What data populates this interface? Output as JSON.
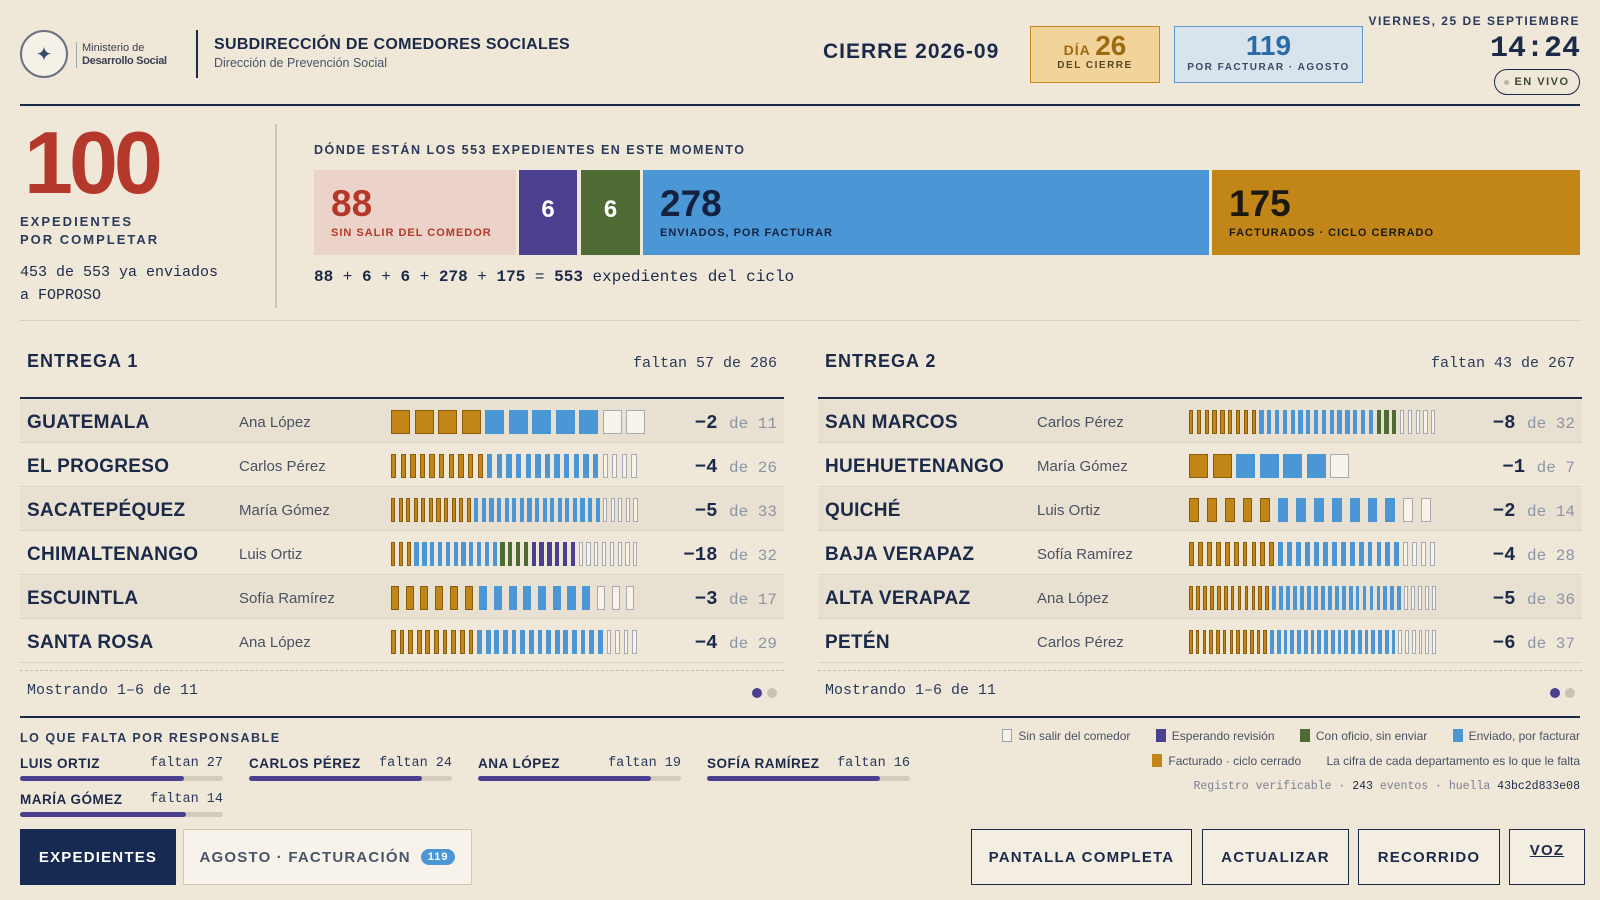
{
  "header": {
    "seal_text": "",
    "ministry_line1": "Ministerio de",
    "ministry_line2": "Desarrollo Social",
    "org_title": "SUBDIRECCIÓN DE COMEDORES SOCIALES",
    "org_subtitle": "Dirección de Prevención Social",
    "cierre": "CIERRE 2026-09",
    "dia_label": "DÍA",
    "dia_num": "26",
    "dia_sub": "DEL CIERRE",
    "fact_num": "119",
    "fact_sub": "POR FACTURAR · AGOSTO",
    "date": "VIERNES, 25 DE SEPTIEMBRE",
    "clock": "14:24",
    "live": "EN VIVO"
  },
  "hero": {
    "number": "100",
    "label1": "EXPEDIENTES",
    "label2": "POR COMPLETAR",
    "note1": "453 de 553 ya enviados",
    "note2": "a FOPROSO"
  },
  "pipeline": {
    "title": "DÓNDE ESTÁN LOS 553 EXPEDIENTES EN ESTE MOMENTO",
    "sin_num": "88",
    "sin_label": "SIN SALIR DEL COMEDOR",
    "esp_num": "6",
    "ofi_num": "6",
    "env_num": "278",
    "env_label": "ENVIADOS, POR FACTURAR",
    "fac_num": "175",
    "fac_label": "FACTURADOS · CICLO CERRADO",
    "eq": [
      "88",
      " + ",
      "6",
      " + ",
      "6",
      " + ",
      "278",
      " + ",
      "175",
      " = ",
      "553",
      " expedientes del ciclo"
    ]
  },
  "colors": {
    "facturado": "#c28618",
    "enviado": "#4b97d6",
    "oficio": "#4f6b34",
    "revision": "#4b3f8f",
    "sin_salir": "#f7f3ea"
  },
  "entregas": [
    {
      "title": "ENTREGA 1",
      "faltan": "faltan 57 de 286",
      "showing": "Mostrando 1–6 de 11",
      "rows": [
        {
          "dept": "GUATEMALA",
          "person": "Ana López",
          "neg": "−2",
          "de": "de 11",
          "fac": 4,
          "env": 5,
          "ofi": 0,
          "rev": 0,
          "sin": 2
        },
        {
          "dept": "EL PROGRESO",
          "person": "Carlos Pérez",
          "neg": "−4",
          "de": "de 26",
          "fac": 10,
          "env": 12,
          "ofi": 0,
          "rev": 0,
          "sin": 4
        },
        {
          "dept": "SACATEPÉQUEZ",
          "person": "María Gómez",
          "neg": "−5",
          "de": "de 33",
          "fac": 11,
          "env": 17,
          "ofi": 0,
          "rev": 0,
          "sin": 5
        },
        {
          "dept": "CHIMALTENANGO",
          "person": "Luis Ortiz",
          "neg": "−18",
          "de": "de 32",
          "fac": 3,
          "env": 11,
          "ofi": 4,
          "rev": 6,
          "sin": 8
        },
        {
          "dept": "ESCUINTLA",
          "person": "Sofía Ramírez",
          "neg": "−3",
          "de": "de 17",
          "fac": 6,
          "env": 8,
          "ofi": 0,
          "rev": 0,
          "sin": 3
        },
        {
          "dept": "SANTA ROSA",
          "person": "Ana López",
          "neg": "−4",
          "de": "de 29",
          "fac": 10,
          "env": 15,
          "ofi": 0,
          "rev": 0,
          "sin": 4
        }
      ]
    },
    {
      "title": "ENTREGA 2",
      "faltan": "faltan 43 de 267",
      "showing": "Mostrando 1–6 de 11",
      "rows": [
        {
          "dept": "SAN MARCOS",
          "person": "Carlos Pérez",
          "neg": "−8",
          "de": "de 32",
          "fac": 9,
          "env": 15,
          "ofi": 3,
          "rev": 0,
          "sin": 5
        },
        {
          "dept": "HUEHUETENANGO",
          "person": "María Gómez",
          "neg": "−1",
          "de": "de 7",
          "fac": 2,
          "env": 4,
          "ofi": 0,
          "rev": 0,
          "sin": 1
        },
        {
          "dept": "QUICHÉ",
          "person": "Luis Ortiz",
          "neg": "−2",
          "de": "de 14",
          "fac": 5,
          "env": 7,
          "ofi": 0,
          "rev": 0,
          "sin": 2
        },
        {
          "dept": "BAJA VERAPAZ",
          "person": "Sofía Ramírez",
          "neg": "−4",
          "de": "de 28",
          "fac": 10,
          "env": 14,
          "ofi": 0,
          "rev": 0,
          "sin": 4
        },
        {
          "dept": "ALTA VERAPAZ",
          "person": "Ana López",
          "neg": "−5",
          "de": "de 36",
          "fac": 12,
          "env": 19,
          "ofi": 0,
          "rev": 0,
          "sin": 5
        },
        {
          "dept": "PETÉN",
          "person": "Carlos Pérez",
          "neg": "−6",
          "de": "de 37",
          "fac": 12,
          "env": 19,
          "ofi": 0,
          "rev": 0,
          "sin": 6
        }
      ]
    }
  ],
  "responsables": {
    "title": "LO QUE FALTA POR RESPONSABLE",
    "items": [
      {
        "name": "LUIS ORTIZ",
        "faltan": "faltan 27",
        "pct": 0.81
      },
      {
        "name": "CARLOS PÉREZ",
        "faltan": "faltan 24",
        "pct": 0.85
      },
      {
        "name": "ANA LÓPEZ",
        "faltan": "faltan 19",
        "pct": 0.85
      },
      {
        "name": "SOFÍA RAMÍREZ",
        "faltan": "faltan 16",
        "pct": 0.85
      },
      {
        "name": "MARÍA GÓMEZ",
        "faltan": "faltan 14",
        "pct": 0.82
      }
    ]
  },
  "legend": {
    "sin": "Sin salir del comedor",
    "rev": "Esperando revisión",
    "ofi": "Con oficio, sin enviar",
    "env": "Enviado, por facturar",
    "fac": "Facturado · ciclo cerrado",
    "note": "La cifra de cada departamento es lo que le falta",
    "reg_a": "Registro verificable · ",
    "reg_events": "243",
    "reg_b": " eventos · huella ",
    "reg_hash": "43bc2d833e08"
  },
  "buttons": {
    "expedientes": "EXPEDIENTES",
    "agosto": "AGOSTO · FACTURACIÓN",
    "agosto_badge": "119",
    "pantalla": "PANTALLA COMPLETA",
    "actualizar": "ACTUALIZAR",
    "recorrido": "RECORRIDO",
    "voz": "VOZ"
  }
}
